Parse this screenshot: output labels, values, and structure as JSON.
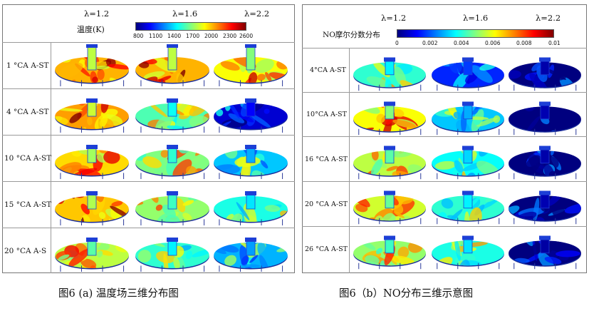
{
  "panel_a": {
    "lambdas": [
      "λ=1.2",
      "λ=1.6",
      "λ=2.2"
    ],
    "colorbar_title": "温度(K)",
    "colorbar_ticks": [
      "800",
      "1100",
      "1400",
      "1700",
      "2000",
      "2300",
      "2600"
    ],
    "rows": [
      "1 °CA A-ST",
      "4 °CA A-ST",
      "10 °CA A-ST",
      "15 °CA A-ST",
      "20 °CA A-S"
    ],
    "caption": "图6 (a)  温度场三维分布图"
  },
  "panel_b": {
    "lambdas": [
      "λ=1.2",
      "λ=1.6",
      "λ=2.2"
    ],
    "colorbar_title": "NO摩尔分数分布",
    "colorbar_ticks": [
      "0",
      "0.002",
      "0.004",
      "0.006",
      "0.008",
      "0.01"
    ],
    "rows": [
      "4°CA A-ST",
      "10°CA A-ST",
      "16 °CA A-ST",
      "20 °CA A-ST",
      "26 °CA A-ST"
    ],
    "caption": "图6（b）NO分布三维示意图"
  },
  "colors": {
    "jet": [
      "#00007f",
      "#0000ff",
      "#0080ff",
      "#00ffff",
      "#80ff80",
      "#ffff00",
      "#ff8000",
      "#ff0000",
      "#800000"
    ],
    "chamber_blue": "#1d3fd6"
  },
  "field_levels": {
    "panel_a": [
      [
        0.8,
        0.8,
        0.72
      ],
      [
        0.82,
        0.55,
        0.18
      ],
      [
        0.76,
        0.6,
        0.42
      ],
      [
        0.78,
        0.62,
        0.5
      ],
      [
        0.66,
        0.52,
        0.4
      ]
    ],
    "panel_b": [
      [
        0.52,
        0.26,
        0.06
      ],
      [
        0.72,
        0.42,
        0.07
      ],
      [
        0.66,
        0.48,
        0.06
      ],
      [
        0.68,
        0.52,
        0.07
      ],
      [
        0.62,
        0.5,
        0.05
      ]
    ]
  }
}
